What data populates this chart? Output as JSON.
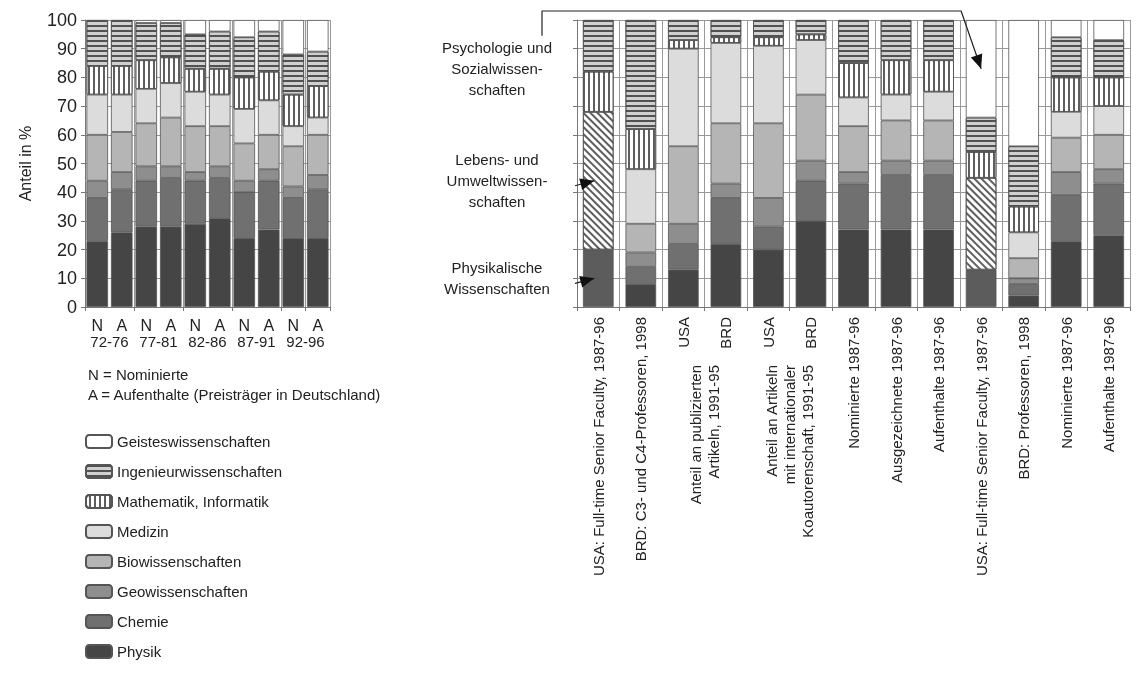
{
  "chart_data": [
    {
      "type": "bar",
      "stacked": true,
      "ylabel": "Anteil in %",
      "ylim": [
        0,
        100
      ],
      "yticks": [
        0,
        10,
        20,
        30,
        40,
        50,
        60,
        70,
        80,
        90,
        100
      ],
      "grid": true,
      "legend": "bottom left",
      "categories": [
        "N",
        "A",
        "N",
        "A",
        "N",
        "A",
        "N",
        "A",
        "N",
        "A"
      ],
      "series": [
        {
          "name": "Physik",
          "color": "#454545",
          "values": [
            23,
            26,
            28,
            28,
            29,
            31,
            24,
            27,
            24,
            24
          ]
        },
        {
          "name": "Chemie",
          "color": "#707070",
          "values": [
            15,
            15,
            16,
            17,
            15,
            14,
            16,
            17,
            14,
            17
          ]
        },
        {
          "name": "Geowissenschaften",
          "color": "#8e8e8e",
          "values": [
            6,
            6,
            5,
            4,
            3,
            4,
            4,
            4,
            4,
            5
          ]
        },
        {
          "name": "Biowissenschaften",
          "color": "#b5b5b5",
          "values": [
            16,
            14,
            15,
            17,
            16,
            14,
            13,
            12,
            14,
            14
          ]
        },
        {
          "name": "Medizin",
          "color": "#dcdcdc",
          "values": [
            14,
            13,
            12,
            12,
            12,
            11,
            12,
            12,
            7,
            6
          ]
        },
        {
          "name": "Mathematik, Informatik",
          "color": "#ffffff",
          "values": [
            10,
            10,
            10,
            9,
            8,
            9,
            11,
            10,
            11,
            11
          ]
        },
        {
          "name": "Ingenieurwissenschaften",
          "color": "#d0d0d0",
          "values": [
            16,
            16,
            13,
            12,
            12,
            13,
            14,
            14,
            14,
            12
          ]
        },
        {
          "name": "Geisteswissenschaften",
          "color": "#ffffff",
          "values": [
            null,
            null,
            1,
            1,
            5,
            4,
            6,
            4,
            12,
            11
          ]
        }
      ],
      "annotations": [
        "72-76",
        "77-81",
        "82-86",
        "87-91",
        "92-96",
        "N = Nominierte",
        "A = Aufenthalte (Preisträger in Deutschland)"
      ]
    },
    {
      "type": "bar",
      "stacked": true,
      "ylim": [
        0,
        100
      ],
      "yticks": [
        0,
        10,
        20,
        30,
        40,
        50,
        60,
        70,
        80,
        90,
        100
      ],
      "grid": true,
      "tick_labels": "x",
      "categories": [
        "USA: Full-time Senior Faculty, 1987-96",
        "BRD: C3- und C4-Professoren, 1998",
        "USA",
        "BRD",
        "USA",
        "BRD",
        "Nominierte 1987-96",
        "Ausgezeichnete 1987-96",
        "Aufenthalte 1987-96",
        "USA: Full-time Senior Faculty, 1987-96",
        "BRD: Professoren, 1998",
        "Nominierte 1987-96",
        "Aufenthalte 1987-96"
      ],
      "series": [
        {
          "name": "Physikalische\nWissenschaften",
          "color": "#5c5c5c",
          "values": [
            20,
            null,
            null,
            null,
            null,
            null,
            null,
            null,
            null,
            13,
            null,
            null,
            null
          ]
        },
        {
          "color": "#454545",
          "values": [
            null,
            8,
            13,
            22,
            20,
            30,
            27,
            27,
            27,
            null,
            4,
            23,
            25
          ]
        },
        {
          "color": "#707070",
          "values": [
            null,
            6,
            9,
            16,
            8,
            14,
            16,
            19,
            19,
            null,
            4,
            16,
            18
          ]
        },
        {
          "color": "#8e8e8e",
          "values": [
            null,
            5,
            7,
            5,
            10,
            7,
            4,
            5,
            5,
            null,
            2,
            8,
            5
          ]
        },
        {
          "color": "#b5b5b5",
          "values": [
            null,
            10,
            27,
            21,
            26,
            23,
            16,
            14,
            14,
            null,
            7,
            12,
            12
          ]
        },
        {
          "color": "#dcdcdc",
          "values": [
            null,
            19,
            34,
            28,
            27,
            19,
            10,
            9,
            10,
            null,
            9,
            9,
            10
          ]
        },
        {
          "name": "Lebens- und\nUmweltwissen-\nschaften",
          "color": "#ffffff",
          "values": [
            48,
            null,
            null,
            null,
            null,
            null,
            null,
            null,
            null,
            32,
            null,
            null,
            null
          ]
        },
        {
          "color": "#ffffff",
          "values": [
            14,
            14,
            3,
            2,
            3,
            2,
            12,
            12,
            11,
            9,
            9,
            12,
            10
          ]
        },
        {
          "color": "#d0d0d0",
          "values": [
            18,
            38,
            7,
            6,
            6,
            5,
            15,
            14,
            14,
            12,
            21,
            14,
            13
          ]
        },
        {
          "name": "Psychologie und\nSozialwissen-\nschaften",
          "color": "#ffffff",
          "values": [
            null,
            null,
            null,
            null,
            null,
            null,
            null,
            null,
            null,
            34,
            null,
            null,
            null
          ]
        },
        {
          "color": "#ffffff",
          "values": [
            null,
            null,
            null,
            null,
            null,
            null,
            null,
            null,
            null,
            null,
            44,
            6,
            7
          ]
        }
      ],
      "annotations": [
        "Anteil an publizierten\nArtikeln, 1991-95",
        "Anteil an Artikeln\nmit internationaler\nKoautorenschaft, 1991-95"
      ]
    }
  ]
}
